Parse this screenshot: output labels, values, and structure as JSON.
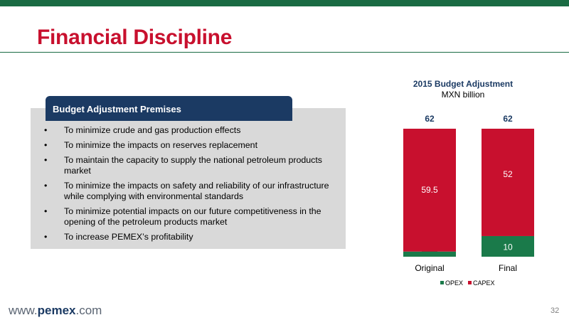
{
  "slide": {
    "title": "Financial Discipline",
    "page_number": "32"
  },
  "footer": {
    "url_prefix": "www.",
    "url_brand": "pemex",
    "url_suffix": ".com"
  },
  "premises": {
    "header": "Budget Adjustment Premises",
    "items": [
      "To minimize crude and gas production effects",
      "To minimize the impacts on reserves replacement",
      "To maintain the capacity to supply the national petroleum products market",
      "To minimize the impacts on safety and reliability of our infrastructure while complying with environmental standards",
      "To minimize potential impacts on our future competitiveness in the opening of the petroleum products market",
      "To increase PEMEX’s profitability"
    ]
  },
  "colors": {
    "opex": "#1a7a4a",
    "capex": "#c8102e",
    "navy": "#1b3a63",
    "green_bar": "#1a6b43"
  },
  "chart_data": {
    "type": "bar",
    "stacked": true,
    "title": "2015 Budget Adjustment",
    "subtitle": "MXN billion",
    "categories": [
      "Original",
      "Final"
    ],
    "totals": [
      "62",
      "62"
    ],
    "series": [
      {
        "name": "OPEX",
        "values": [
          2.5,
          10
        ],
        "labels": [
          "2.5",
          "10"
        ]
      },
      {
        "name": "CAPEX",
        "values": [
          59.5,
          52
        ],
        "labels": [
          "59.5",
          "52"
        ]
      }
    ],
    "legend": "bottom"
  }
}
